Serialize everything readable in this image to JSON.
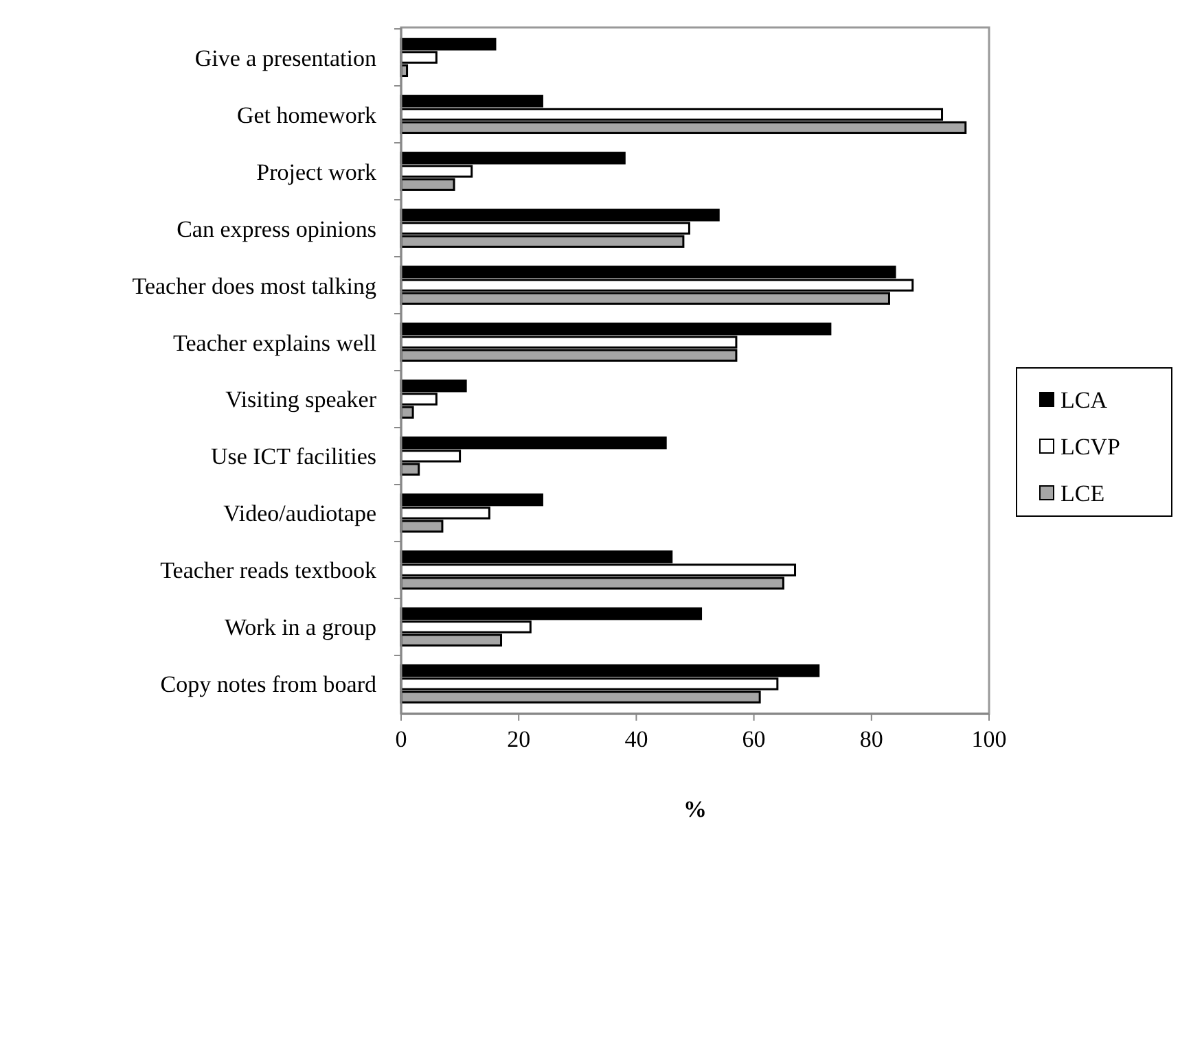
{
  "chart_data": {
    "type": "bar",
    "orientation": "horizontal",
    "xlabel": "%",
    "categories": [
      "Give a presentation",
      "Get homework",
      "Project work",
      "Can express opinions",
      "Teacher does most talking",
      "Teacher explains well",
      "Visiting speaker",
      "Use ICT facilities",
      "Video/audiotape",
      "Teacher reads textbook",
      "Work in a group",
      "Copy notes from board"
    ],
    "series": [
      {
        "name": "LCA",
        "color": "#000000",
        "values": [
          16,
          24,
          38,
          54,
          84,
          73,
          11,
          45,
          24,
          46,
          51,
          71
        ]
      },
      {
        "name": "LCVP",
        "color": "#ffffff",
        "values": [
          6,
          92,
          12,
          49,
          87,
          57,
          6,
          10,
          15,
          67,
          22,
          64
        ]
      },
      {
        "name": "LCE",
        "color": "#a6a6a6",
        "values": [
          1,
          96,
          9,
          48,
          83,
          57,
          2,
          3,
          7,
          65,
          17,
          61
        ]
      }
    ],
    "xlim": [
      0,
      100
    ],
    "xticks": [
      0,
      20,
      40,
      60,
      80,
      100
    ],
    "legend": "right",
    "grid": false
  }
}
